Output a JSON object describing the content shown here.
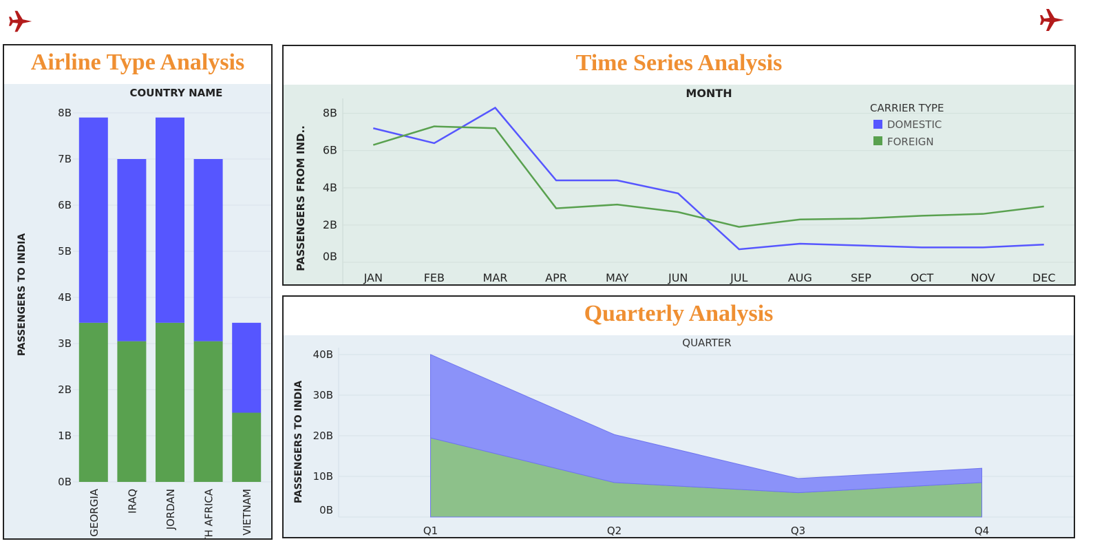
{
  "icons": {
    "left": "airplane-icon",
    "right": "airplane-icon"
  },
  "colors": {
    "domestic": "#5656ff",
    "foreign": "#59a14f",
    "title": "#ef8f32",
    "icon": "#b31b1b",
    "plot_bg_blue": "#e7eff5",
    "plot_bg_green": "#e1ede9"
  },
  "airline": {
    "title": "Airline Type Analysis",
    "chart_data": {
      "type": "bar",
      "stacked": true,
      "title": "",
      "column_header": "COUNTRY NAME",
      "ylabel": "PASSENGERS TO INDIA",
      "xlabel": "",
      "categories": [
        "GEORGIA",
        "IRAQ",
        "JORDAN",
        "SOUTH AFRICA",
        "VIETNAM"
      ],
      "series": [
        {
          "name": "FOREIGN",
          "color": "#59a14f",
          "values": [
            3.45,
            3.05,
            3.45,
            3.05,
            1.5
          ]
        },
        {
          "name": "DOMESTIC",
          "color": "#5656ff",
          "values": [
            4.45,
            3.95,
            4.45,
            3.95,
            1.95
          ]
        }
      ],
      "yticks": [
        "0B",
        "1B",
        "2B",
        "3B",
        "4B",
        "5B",
        "6B",
        "7B",
        "8B"
      ],
      "ylim": [
        0,
        8
      ],
      "grid": true
    }
  },
  "timeseries": {
    "title": "Time Series Analysis",
    "chart_data": {
      "type": "line",
      "title": "",
      "column_header": "MONTH",
      "ylabel": "PASSENGERS FROM IND..",
      "categories": [
        "JAN",
        "FEB",
        "MAR",
        "APR",
        "MAY",
        "JUN",
        "JUL",
        "AUG",
        "SEP",
        "OCT",
        "NOV",
        "DEC"
      ],
      "series": [
        {
          "name": "DOMESTIC",
          "color": "#5656ff",
          "values": [
            7.2,
            6.4,
            8.3,
            4.4,
            4.4,
            3.7,
            0.7,
            1.0,
            0.9,
            0.8,
            0.8,
            0.95
          ]
        },
        {
          "name": "FOREIGN",
          "color": "#59a14f",
          "values": [
            6.3,
            7.3,
            7.2,
            2.9,
            3.1,
            2.7,
            1.9,
            2.3,
            2.35,
            2.5,
            2.6,
            3.0
          ]
        }
      ],
      "legend": {
        "title": "CARRIER TYPE",
        "items": [
          "DOMESTIC",
          "FOREIGN"
        ],
        "position": "top-right"
      },
      "yticks": [
        "0B",
        "2B",
        "4B",
        "6B",
        "8B"
      ],
      "ylim": [
        0,
        8.8
      ],
      "grid": true
    }
  },
  "quarterly": {
    "title": "Quarterly Analysis",
    "chart_data": {
      "type": "area",
      "stacked": true,
      "title": "",
      "column_header": "QUARTER",
      "ylabel": "PASSENGERS TO INDIA",
      "categories": [
        "Q1",
        "Q2",
        "Q3",
        "Q4"
      ],
      "series": [
        {
          "name": "FOREIGN",
          "color": "#59a14f",
          "values": [
            19.5,
            8.5,
            6.0,
            8.5
          ]
        },
        {
          "name": "DOMESTIC",
          "color": "#5656ff",
          "values": [
            20.5,
            11.8,
            3.5,
            3.5
          ]
        }
      ],
      "yticks": [
        "0B",
        "10B",
        "20B",
        "30B",
        "40B"
      ],
      "ylim": [
        0,
        40
      ],
      "grid": true
    }
  }
}
